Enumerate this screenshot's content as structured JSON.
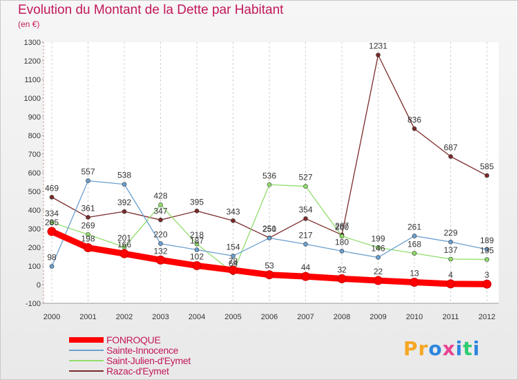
{
  "title": "Evolution du Montant de la Dette par Habitant",
  "subtitle": "(en €)",
  "logo": {
    "letters": [
      "P",
      "r",
      "o",
      "x",
      "i",
      "t",
      "i"
    ],
    "colors": [
      "#f5a623",
      "#f5a623",
      "#2e86de",
      "#e84393",
      "#2e86de",
      "#2ecc71",
      "#2e86de"
    ]
  },
  "chart_data": {
    "type": "line",
    "x": [
      "2000",
      "2001",
      "2002",
      "2003",
      "2004",
      "2005",
      "2006",
      "2007",
      "2008",
      "2009",
      "2010",
      "2011",
      "2012"
    ],
    "ylim": [
      -100,
      1300
    ],
    "yticks": [
      "-100",
      "0",
      "100",
      "200",
      "300",
      "400",
      "500",
      "600",
      "700",
      "800",
      "900",
      "1000",
      "1100",
      "1200",
      "1300"
    ],
    "grid": "vertical dashed",
    "legend": "bottom-left",
    "series": [
      {
        "name": "FONROQUE",
        "color": "#ff0000",
        "values": [
          285,
          198,
          166,
          132,
          102,
          78,
          53,
          44,
          32,
          22,
          13,
          4,
          3
        ],
        "labels": [
          "285",
          "198",
          "166",
          "132",
          "102",
          "78",
          "53",
          "44",
          "32",
          "22",
          "13",
          "4",
          "3"
        ]
      },
      {
        "name": "Sainte-Innocence",
        "color": "#6a9fd0",
        "values": [
          98,
          557,
          538,
          220,
          187,
          154,
          250,
          217,
          180,
          146,
          261,
          229,
          189
        ],
        "labels": [
          "98",
          "557",
          "538",
          "220",
          "187",
          "154",
          "250",
          "217",
          "180",
          "146",
          "261",
          "229",
          "189"
        ]
      },
      {
        "name": "Saint-Julien-d'Eymet",
        "color": "#90dd6a",
        "values": [
          334,
          269,
          201,
          428,
          218,
          64,
          536,
          527,
          260,
          199,
          168,
          137,
          135
        ],
        "labels": [
          "334",
          "269",
          "201",
          "428",
          "218",
          "64",
          "536",
          "527",
          "260",
          "199",
          "168",
          "137",
          "135"
        ]
      },
      {
        "name": "Razac-d'Eymet",
        "color": "#7b2a2a",
        "values": [
          469,
          361,
          392,
          347,
          395,
          343,
          251,
          354,
          267,
          1231,
          836,
          687,
          585
        ],
        "labels": [
          "469",
          "361",
          "392",
          "347",
          "395",
          "343",
          "251",
          "354",
          "267",
          "1231",
          "836",
          "687",
          "585"
        ]
      }
    ]
  }
}
